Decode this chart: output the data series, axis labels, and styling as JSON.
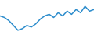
{
  "values": [
    32,
    31,
    29,
    26,
    23,
    24,
    26,
    25,
    27,
    30,
    32,
    33,
    31,
    34,
    32,
    35,
    33,
    36,
    34,
    38,
    35,
    36
  ],
  "line_color": "#2b8ccc",
  "linewidth": 1.1,
  "background_color": "#ffffff",
  "ylim": [
    20,
    42
  ]
}
